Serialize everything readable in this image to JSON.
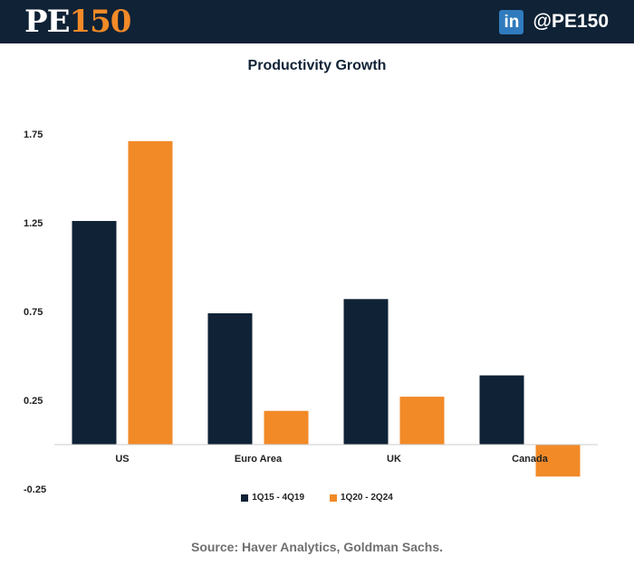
{
  "header": {
    "logo_pe": "PE",
    "logo_num": "150",
    "linkedin_text": "in",
    "handle": "@PE150"
  },
  "colors": {
    "header_bg": "#0f2236",
    "navy": "#0f2236",
    "orange": "#f28a27"
  },
  "source": "Source: Haver Analytics, Goldman Sachs.",
  "chart_data": {
    "type": "bar",
    "title": "Productivity Growth",
    "xlabel": "",
    "ylabel": "",
    "categories": [
      "US",
      "Euro Area",
      "UK",
      "Canada"
    ],
    "series": [
      {
        "name": "1Q15 - 4Q19",
        "color": "#0f2236",
        "values": [
          1.26,
          0.74,
          0.82,
          0.39
        ]
      },
      {
        "name": "1Q20 - 2Q24",
        "color": "#f28a27",
        "values": [
          1.71,
          0.19,
          0.27,
          -0.18
        ]
      }
    ],
    "yticks": [
      1.75,
      1.25,
      0.75,
      0.25,
      -0.25
    ],
    "ytick_labels": [
      "1.75",
      "1.25",
      "0.75",
      "0.25",
      "-0.25"
    ],
    "ylim": [
      -0.25,
      1.75
    ],
    "grid": false,
    "legend_position": "bottom"
  }
}
